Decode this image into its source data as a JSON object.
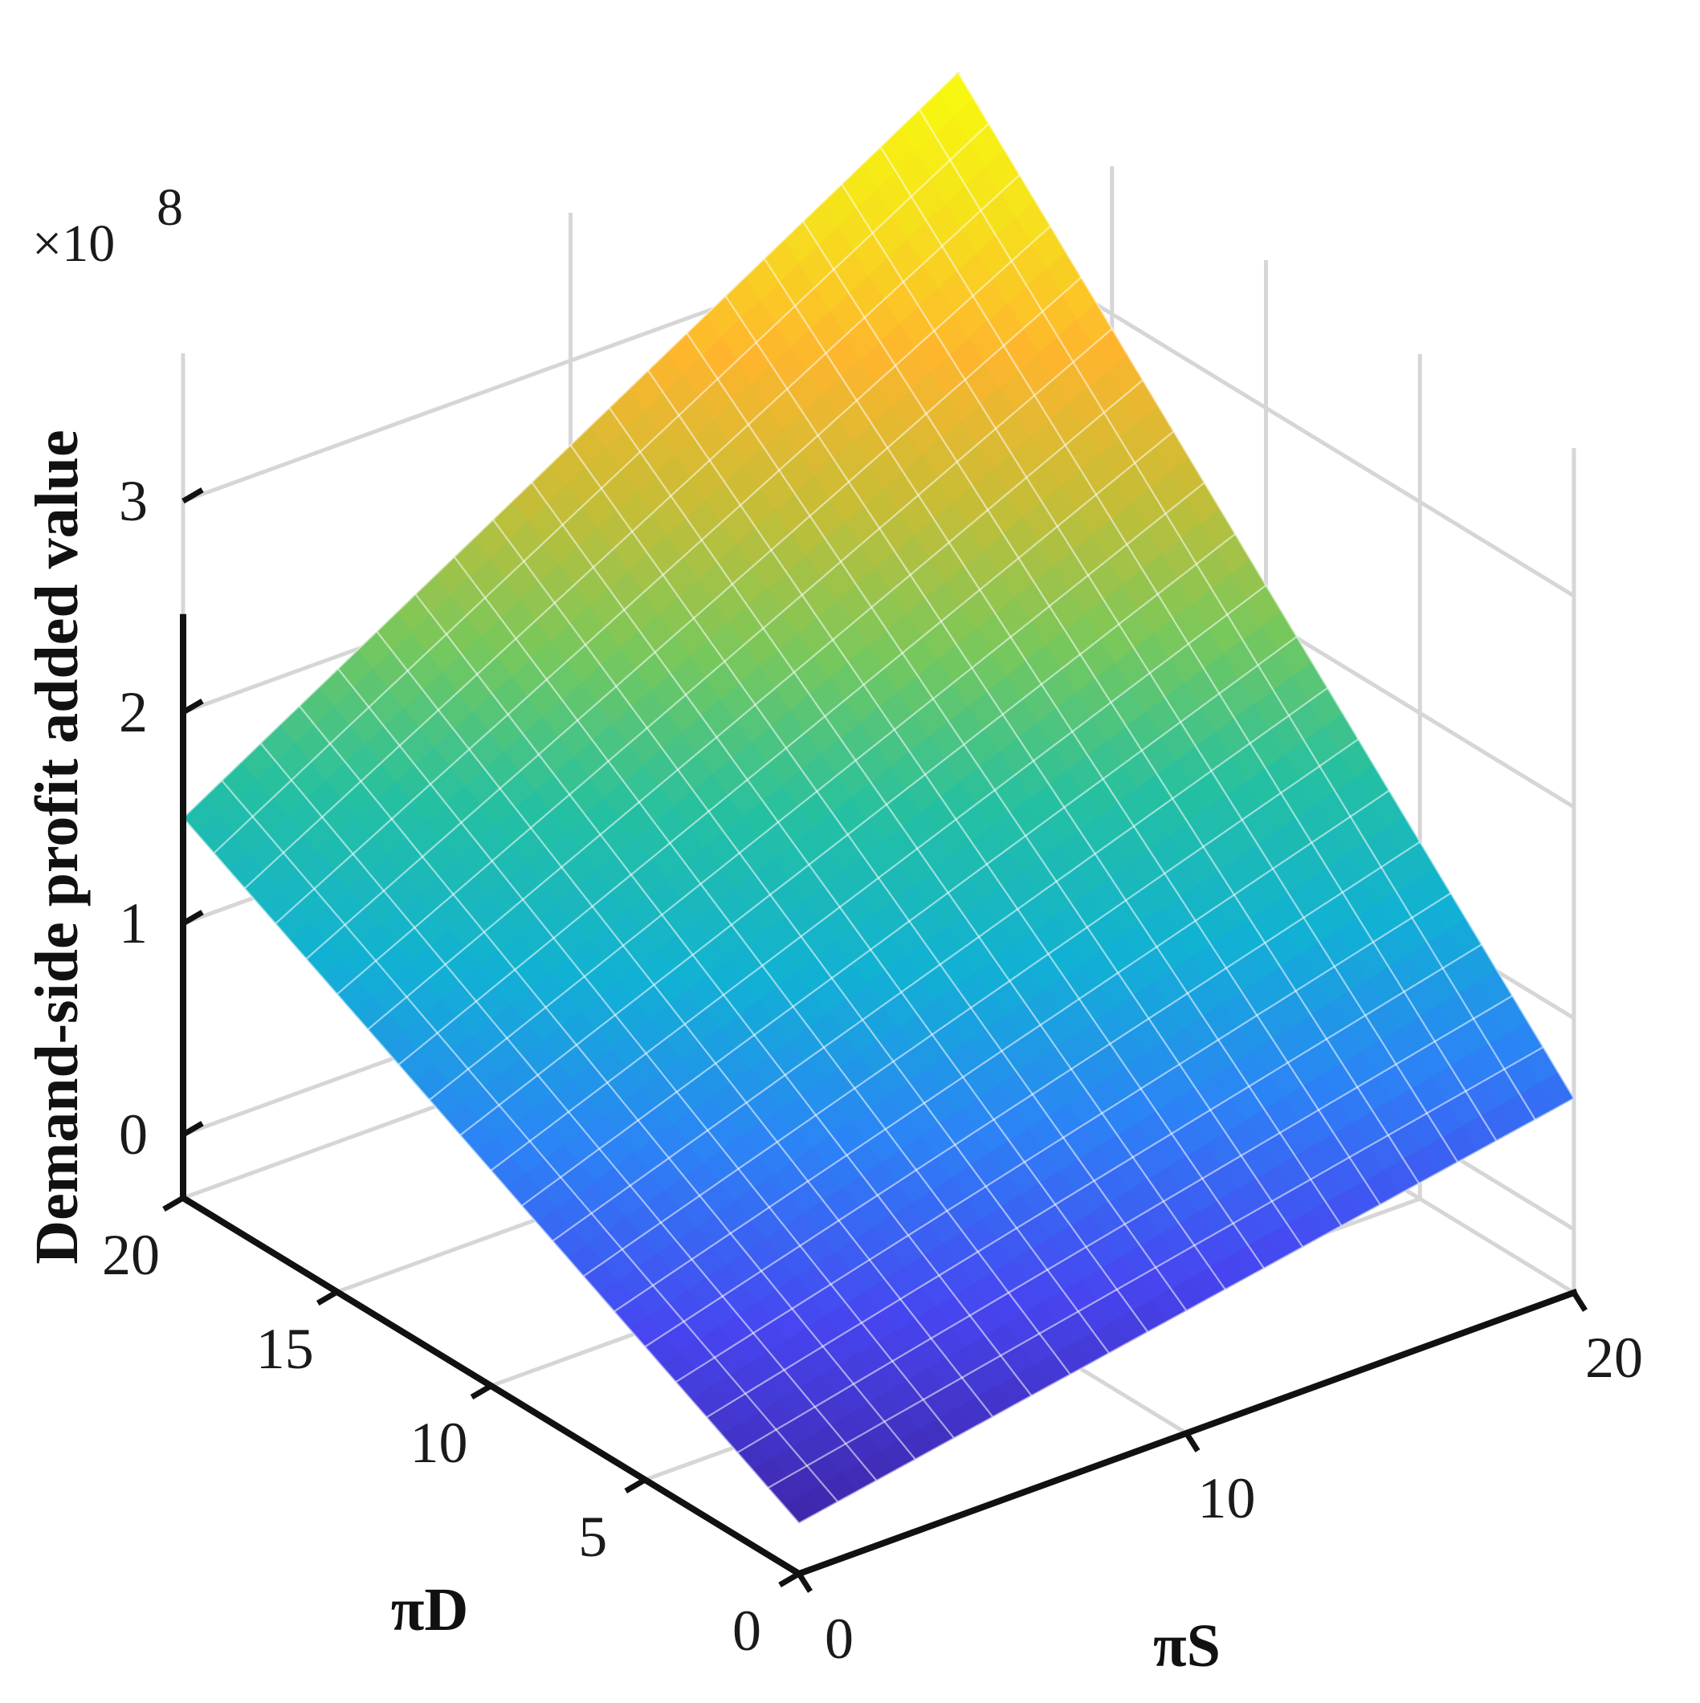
{
  "chart_data": {
    "type": "surface",
    "x": {
      "label": "πS",
      "range": [
        0,
        20
      ],
      "ticks": [
        0,
        10,
        20
      ],
      "tick_labels": [
        "0",
        "10",
        "20"
      ]
    },
    "y": {
      "label": "πD",
      "range": [
        0,
        20
      ],
      "ticks": [
        0,
        5,
        10,
        15,
        20
      ],
      "tick_labels": [
        "0",
        "5",
        "10",
        "15",
        "20"
      ]
    },
    "z": {
      "label": "Demand-side profit added value",
      "multiplier_text": "×10",
      "multiplier_exponent": "8",
      "range": [
        -0.3,
        3.7
      ],
      "ticks": [
        0,
        1,
        2,
        3
      ],
      "tick_labels": [
        "0",
        "1",
        "2",
        "3"
      ]
    },
    "surface": {
      "grid_steps": 40,
      "corners": [
        {
          "x": 0,
          "y": 0,
          "z": -0.06
        },
        {
          "x": 20,
          "y": 0,
          "z": 0.62
        },
        {
          "x": 0,
          "y": 20,
          "z": 1.5
        },
        {
          "x": 20,
          "y": 20,
          "z": 3.7
        }
      ]
    },
    "colormap": "parula",
    "colormap_stops": [
      "#3e26a8",
      "#4745f0",
      "#2c83f6",
      "#11b1d4",
      "#25c0a1",
      "#77c85c",
      "#c7bd36",
      "#feb52d",
      "#f5e21b",
      "#f9fb0e"
    ],
    "grid": true,
    "edge_color": "#ffffff"
  }
}
